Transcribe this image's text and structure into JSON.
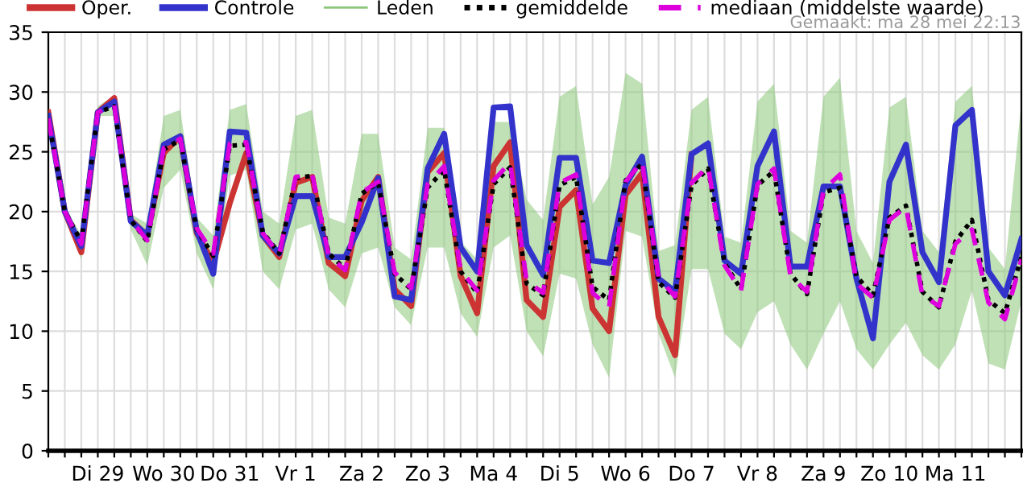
{
  "chart_data": {
    "type": "line",
    "categories": [
      null,
      null,
      null,
      "Di 29",
      null,
      null,
      null,
      "Wo 30",
      null,
      null,
      null,
      "Do 31",
      null,
      null,
      null,
      "Vr 1",
      null,
      null,
      null,
      "Za 2",
      null,
      null,
      null,
      "Zo 3",
      null,
      null,
      null,
      "Ma 4",
      null,
      null,
      null,
      "Di 5",
      null,
      null,
      null,
      "Wo 6",
      null,
      null,
      null,
      "Do 7",
      null,
      null,
      null,
      "Vr 8",
      null,
      null,
      null,
      "Za 9",
      null,
      null,
      null,
      "Zo 10",
      null,
      null,
      null,
      "Ma 11",
      null,
      null,
      null,
      null
    ],
    "series": [
      {
        "name": "Oper.",
        "color": "#cc3333",
        "line_style": "solid",
        "values": [
          28.3,
          20.0,
          16.6,
          28.3,
          29.5,
          19.3,
          18.0,
          24.9,
          26.3,
          18.2,
          15.7,
          20.7,
          24.9,
          18.0,
          16.2,
          22.4,
          22.9,
          15.7,
          14.6,
          20.9,
          22.9,
          13.5,
          12.1,
          23.3,
          24.9,
          14.6,
          11.5,
          23.8,
          25.8,
          12.6,
          11.2,
          20.4,
          21.8,
          11.9,
          10.0,
          21.4,
          23.2,
          11.2,
          8.0,
          24.8,
          null,
          null,
          null,
          null,
          null,
          null,
          null,
          null,
          null,
          null,
          null,
          null,
          null,
          null,
          null,
          null,
          null,
          null,
          null,
          null
        ]
      },
      {
        "name": "Controle",
        "color": "#3333cc",
        "line_style": "solid",
        "values": [
          28.0,
          20.0,
          17.1,
          28.3,
          29.2,
          19.2,
          18.0,
          25.6,
          26.3,
          18.4,
          14.8,
          26.7,
          26.6,
          18.0,
          16.5,
          21.3,
          21.3,
          16.2,
          16.2,
          19.1,
          22.8,
          12.9,
          12.6,
          23.6,
          26.5,
          17.0,
          15.0,
          28.7,
          28.8,
          17.2,
          14.7,
          24.5,
          24.5,
          15.9,
          15.7,
          22.2,
          24.6,
          14.4,
          13.3,
          24.8,
          25.7,
          15.9,
          14.8,
          23.8,
          26.7,
          15.4,
          15.4,
          22.1,
          22.1,
          14.4,
          9.4,
          22.5,
          25.6,
          16.6,
          14.1,
          27.2,
          28.5,
          15.0,
          13.0,
          17.7
        ]
      },
      {
        "name": "Leden",
        "color": "#8cc87a",
        "values": [
          null,
          null,
          null,
          null,
          null,
          null,
          null,
          null,
          null,
          null,
          null,
          null,
          null,
          null,
          null,
          null,
          null,
          null,
          null,
          null,
          null,
          null,
          null,
          null,
          null,
          null,
          null,
          null,
          null,
          null,
          null,
          null,
          null,
          null,
          null,
          null,
          null,
          null,
          null,
          null,
          null,
          null,
          null,
          null,
          null,
          null,
          null,
          null,
          null,
          null,
          null,
          null,
          null,
          null,
          null,
          null,
          null,
          null,
          null,
          null
        ],
        "lower": [
          26.5,
          19.5,
          16.0,
          28.0,
          28.0,
          18.5,
          15.5,
          22.0,
          23.5,
          16.5,
          13.5,
          23.0,
          23.5,
          15.0,
          13.5,
          18.5,
          19.0,
          13.5,
          12.0,
          16.5,
          17.0,
          12.0,
          10.5,
          17.0,
          17.0,
          11.5,
          9.5,
          17.0,
          18.0,
          10.0,
          7.9,
          14.8,
          14.4,
          8.9,
          6.1,
          18.4,
          17.9,
          9.8,
          6.1,
          15.2,
          15.2,
          9.8,
          8.5,
          11.6,
          12.5,
          8.9,
          6.8,
          9.8,
          12.5,
          8.5,
          6.8,
          8.9,
          10.7,
          8.0,
          6.8,
          8.9,
          13.4,
          7.3,
          6.8,
          12.5
        ],
        "upper": [
          28.5,
          20.5,
          18.0,
          28.8,
          29.7,
          19.8,
          19.0,
          28.0,
          28.5,
          19.5,
          18.0,
          28.5,
          29.0,
          20.0,
          19.0,
          28.0,
          28.5,
          19.5,
          19.0,
          26.5,
          26.5,
          17.0,
          16.0,
          27.0,
          27.0,
          17.5,
          16.0,
          27.5,
          27.5,
          21.0,
          19.3,
          29.6,
          30.5,
          20.6,
          22.9,
          31.6,
          30.7,
          16.7,
          17.2,
          28.5,
          29.6,
          17.9,
          17.4,
          29.2,
          30.7,
          18.4,
          17.4,
          29.6,
          31.2,
          18.4,
          15.7,
          28.7,
          29.6,
          18.4,
          16.6,
          29.2,
          30.5,
          17.0,
          15.2,
          29.2
        ]
      },
      {
        "name": "gemiddelde",
        "color": "#000000",
        "line_style": "dotted",
        "values": [
          27.8,
          20.0,
          17.5,
          28.3,
          28.8,
          19.3,
          17.5,
          25.2,
          26.0,
          18.5,
          16.3,
          25.5,
          25.6,
          18.3,
          16.5,
          22.8,
          23.0,
          16.5,
          15.2,
          21.5,
          22.4,
          14.8,
          13.5,
          22.0,
          23.5,
          15.0,
          13.2,
          22.3,
          23.7,
          14.0,
          13.0,
          22.2,
          22.9,
          13.7,
          12.6,
          22.6,
          24.0,
          14.1,
          12.8,
          22.2,
          23.6,
          15.7,
          13.5,
          22.2,
          23.4,
          14.8,
          13.1,
          21.6,
          22.0,
          14.6,
          13.0,
          19.5,
          20.5,
          13.3,
          12.0,
          17.5,
          19.3,
          12.6,
          11.5,
          16.2
        ]
      },
      {
        "name": "mediaan (middelste waarde)",
        "color": "#dd00dd",
        "line_style": "dashed",
        "values": [
          27.8,
          20.0,
          17.3,
          28.3,
          28.9,
          19.3,
          17.6,
          25.3,
          26.1,
          18.6,
          16.5,
          25.7,
          25.8,
          18.2,
          16.4,
          22.9,
          23.1,
          16.3,
          15.1,
          21.6,
          22.5,
          14.9,
          13.6,
          22.3,
          23.8,
          15.1,
          13.4,
          22.6,
          24.1,
          14.2,
          13.2,
          22.4,
          23.1,
          13.2,
          12.0,
          22.5,
          24.2,
          14.5,
          12.9,
          22.4,
          23.8,
          15.5,
          13.4,
          22.3,
          23.6,
          14.6,
          13.3,
          21.8,
          23.1,
          14.0,
          12.8,
          19.3,
          20.4,
          13.0,
          12.1,
          17.3,
          18.5,
          12.4,
          11.0,
          16.0
        ]
      }
    ],
    "ylim": [
      0,
      35
    ],
    "yticks": [
      0,
      5,
      10,
      15,
      20,
      25,
      30,
      35
    ],
    "grid": true,
    "legend": "top",
    "marker": "none",
    "annotations": [
      "Gemaakt: ma 28 mei 22:13"
    ]
  }
}
